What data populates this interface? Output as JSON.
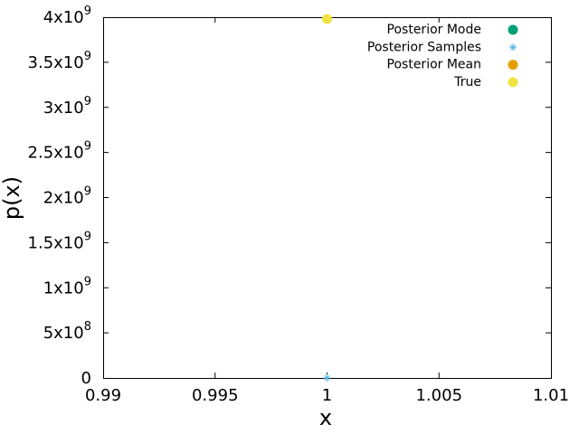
{
  "chart_data": {
    "type": "scatter",
    "xlabel": "x",
    "ylabel": "p(x)",
    "xlim": [
      0.99,
      1.01
    ],
    "ylim": [
      0,
      4000000000
    ],
    "x_ticks": [
      {
        "value": 0.99,
        "label": "0.99"
      },
      {
        "value": 0.995,
        "label": "0.995"
      },
      {
        "value": 1.0,
        "label": "1"
      },
      {
        "value": 1.005,
        "label": "1.005"
      },
      {
        "value": 1.01,
        "label": "1.01"
      }
    ],
    "y_ticks": [
      {
        "value": 0,
        "mantissa": "0",
        "exponent": ""
      },
      {
        "value": 500000000,
        "mantissa": "5x10",
        "exponent": "8"
      },
      {
        "value": 1000000000,
        "mantissa": "1x10",
        "exponent": "9"
      },
      {
        "value": 1500000000,
        "mantissa": "1.5x10",
        "exponent": "9"
      },
      {
        "value": 2000000000,
        "mantissa": "2x10",
        "exponent": "9"
      },
      {
        "value": 2500000000,
        "mantissa": "2.5x10",
        "exponent": "9"
      },
      {
        "value": 3000000000,
        "mantissa": "3x10",
        "exponent": "9"
      },
      {
        "value": 3500000000,
        "mantissa": "3.5x10",
        "exponent": "9"
      },
      {
        "value": 4000000000,
        "mantissa": "4x10",
        "exponent": "9"
      }
    ],
    "grid": false,
    "legend_position": "top-right",
    "series": [
      {
        "name": "Posterior Mode",
        "marker": "circle",
        "color": "#009e73",
        "points": []
      },
      {
        "name": "Posterior Samples",
        "marker": "asterisk",
        "color": "#56b4e9",
        "points": [
          {
            "x": 1.0,
            "y": 0
          }
        ]
      },
      {
        "name": "Posterior Mean",
        "marker": "circle",
        "color": "#e69f00",
        "points": []
      },
      {
        "name": "True",
        "marker": "circle",
        "color": "#f0e442",
        "points": [
          {
            "x": 1.0,
            "y": 3980000000
          }
        ]
      }
    ]
  }
}
